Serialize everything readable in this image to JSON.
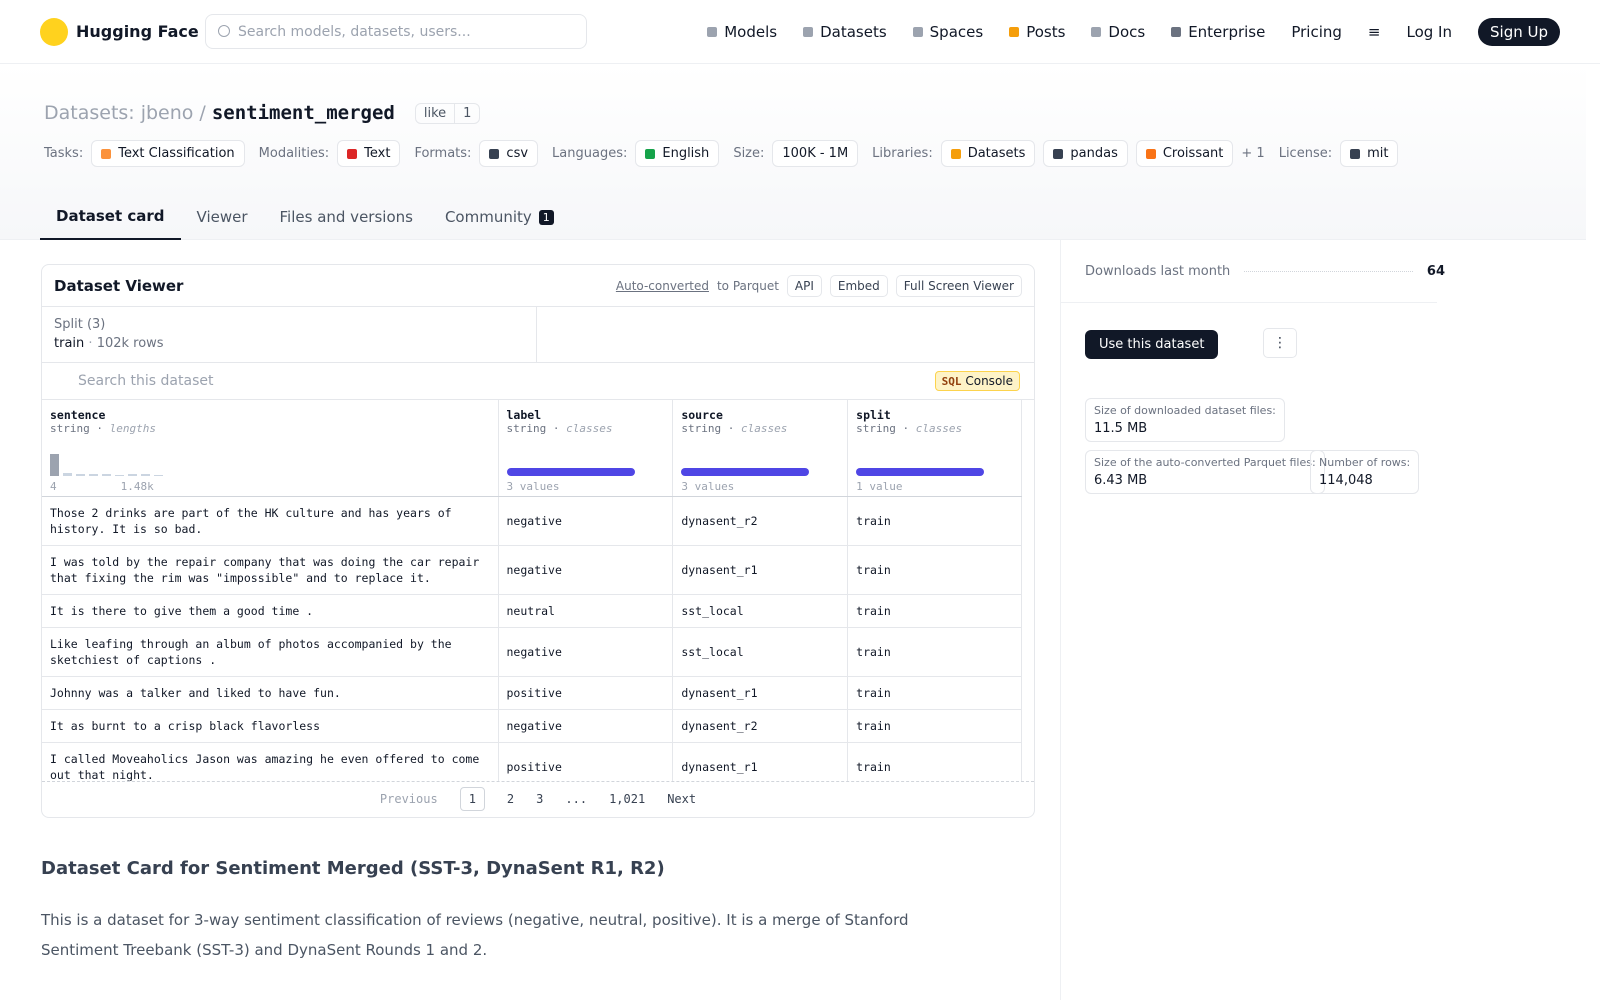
{
  "nav": {
    "logo": "Hugging Face",
    "search_placeholder": "Search models, datasets, users...",
    "links": [
      "Models",
      "Datasets",
      "Spaces",
      "Posts",
      "Docs",
      "Enterprise",
      "Pricing"
    ],
    "login": "Log In",
    "signup": "Sign Up"
  },
  "header": {
    "section": "Datasets:",
    "owner": "jbeno",
    "separator": "/",
    "name": "sentiment_merged",
    "like": "like",
    "likes": 1,
    "tags": [
      {
        "label": "Tasks:",
        "items": [
          "Text Classification"
        ]
      },
      {
        "label": "Modalities:",
        "items": [
          "Text"
        ]
      },
      {
        "label": "Formats:",
        "items": [
          "csv"
        ]
      },
      {
        "label": "Languages:",
        "items": [
          "English"
        ]
      },
      {
        "label": "Size:",
        "items": [
          "100K - 1M"
        ]
      },
      {
        "label": "Libraries:",
        "items": [
          "Datasets",
          "pandas",
          "Croissant"
        ],
        "more": "+ 1"
      },
      {
        "label": "License:",
        "items": [
          "mit"
        ]
      }
    ]
  },
  "tabs": [
    {
      "label": "Dataset card"
    },
    {
      "label": "Viewer"
    },
    {
      "label": "Files and versions"
    },
    {
      "label": "Community",
      "badge": 1
    }
  ],
  "viewer": {
    "title": "Dataset Viewer",
    "converted": "Auto-converted",
    "converted_to": "to Parquet",
    "api": "API",
    "embed": "Embed",
    "fullscreen": "Full Screen Viewer",
    "split_label": "Split (3)",
    "split": "train",
    "split_sep": "·",
    "split_rows": "102k rows",
    "search_placeholder": "Search this dataset",
    "sql": "SQL",
    "console": "Console",
    "columns": [
      {
        "name": "sentence",
        "type": "string",
        "sep": "·",
        "kind": "lengths",
        "min": "4",
        "max": "1.48k"
      },
      {
        "name": "label",
        "type": "string",
        "sep": "·",
        "kind": "classes",
        "summary": "3 values"
      },
      {
        "name": "source",
        "type": "string",
        "sep": "·",
        "kind": "classes",
        "summary": "3 values"
      },
      {
        "name": "split",
        "type": "string",
        "sep": "·",
        "kind": "classes",
        "summary": "1 value"
      }
    ],
    "rows": [
      [
        "Those 2 drinks are part of the HK culture and has years of history. It is so bad.",
        "negative",
        "dynasent_r2",
        "train"
      ],
      [
        "I was told by the repair company that was doing the car repair that fixing the rim was \"impossible\" and to replace it.",
        "negative",
        "dynasent_r1",
        "train"
      ],
      [
        "It is there to give them a good time .",
        "neutral",
        "sst_local",
        "train"
      ],
      [
        "Like leafing through an album of photos accompanied by the sketchiest of captions .",
        "negative",
        "sst_local",
        "train"
      ],
      [
        "Johnny was a talker and liked to have fun.",
        "positive",
        "dynasent_r1",
        "train"
      ],
      [
        "It as burnt to a crisp black flavorless",
        "negative",
        "dynasent_r2",
        "train"
      ],
      [
        "I called Moveaholics Jason was amazing he even offered to come out that night.",
        "positive",
        "dynasent_r1",
        "train"
      ]
    ],
    "pagination": {
      "previous": "Previous",
      "pages": [
        "1",
        "2",
        "3",
        "...",
        "1,021"
      ],
      "next": "Next"
    }
  },
  "card": {
    "heading": "Dataset Card for Sentiment Merged (SST-3, DynaSent R1, R2)",
    "paragraph": "This is a dataset for 3-way sentiment classification of reviews (negative, neutral, positive). It is a merge of Stanford Sentiment Treebank (SST-3) and DynaSent Rounds 1 and 2."
  },
  "sidebar": {
    "downloads_label": "Downloads last month",
    "downloads": 64,
    "use": "Use this dataset",
    "stats": [
      {
        "label": "Size of downloaded dataset files:",
        "value": "11.5 MB"
      },
      {
        "label": "Size of the auto-converted Parquet files:",
        "value": "6.43 MB"
      },
      {
        "label": "Number of rows:",
        "value": "114,048"
      }
    ]
  }
}
